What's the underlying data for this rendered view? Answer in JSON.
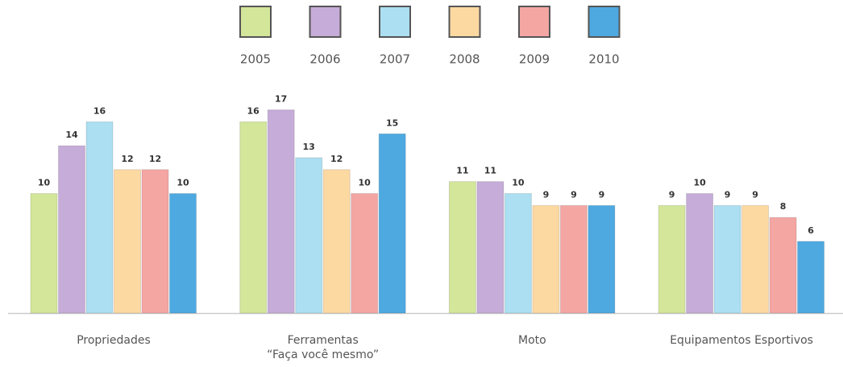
{
  "chart_data": {
    "type": "bar",
    "categories": [
      "Propriedades",
      "Ferramentas\n“Faça você mesmo”",
      "Moto",
      "Equipamentos Esportivos"
    ],
    "series": [
      {
        "name": "2005",
        "color": "#d3e69a",
        "values": [
          10,
          16,
          11,
          9
        ]
      },
      {
        "name": "2006",
        "color": "#c6acd8",
        "values": [
          14,
          17,
          11,
          10
        ]
      },
      {
        "name": "2007",
        "color": "#abdff1",
        "values": [
          16,
          13,
          10,
          9
        ]
      },
      {
        "name": "2008",
        "color": "#fdd9a2",
        "values": [
          12,
          12,
          9,
          9
        ]
      },
      {
        "name": "2009",
        "color": "#f4a6a3",
        "values": [
          12,
          10,
          9,
          8
        ]
      },
      {
        "name": "2010",
        "color": "#4ea9e1",
        "values": [
          10,
          15,
          9,
          6
        ]
      }
    ],
    "ylim": [
      0,
      20
    ],
    "legend": "top"
  }
}
